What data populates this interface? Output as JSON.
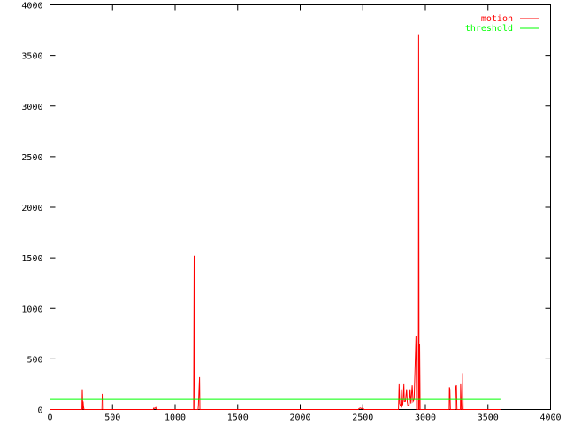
{
  "chart_data": {
    "type": "line",
    "title": "",
    "xlabel": "",
    "ylabel": "",
    "xlim": [
      0,
      4000
    ],
    "ylim": [
      0,
      4000
    ],
    "xticks": [
      0,
      500,
      1000,
      1500,
      2000,
      2500,
      3000,
      3500,
      4000
    ],
    "yticks": [
      0,
      500,
      1000,
      1500,
      2000,
      2500,
      3000,
      3500,
      4000
    ],
    "grid": false,
    "legend_position": "top-right",
    "series": [
      {
        "name": "motion",
        "color": "#ff0000",
        "points": [
          [
            0,
            0
          ],
          [
            255,
            0
          ],
          [
            258,
            200
          ],
          [
            262,
            0
          ],
          [
            264,
            80
          ],
          [
            267,
            30
          ],
          [
            272,
            0
          ],
          [
            415,
            0
          ],
          [
            418,
            150
          ],
          [
            424,
            150
          ],
          [
            426,
            0
          ],
          [
            825,
            0
          ],
          [
            830,
            15
          ],
          [
            838,
            10
          ],
          [
            845,
            20
          ],
          [
            852,
            0
          ],
          [
            1148,
            0
          ],
          [
            1152,
            1520
          ],
          [
            1156,
            0
          ],
          [
            1183,
            0
          ],
          [
            1186,
            40
          ],
          [
            1190,
            170
          ],
          [
            1195,
            320
          ],
          [
            1198,
            0
          ],
          [
            2465,
            0
          ],
          [
            2470,
            10
          ],
          [
            2480,
            15
          ],
          [
            2490,
            10
          ],
          [
            2500,
            15
          ],
          [
            2510,
            0
          ],
          [
            2785,
            0
          ],
          [
            2790,
            250
          ],
          [
            2795,
            60
          ],
          [
            2800,
            40
          ],
          [
            2805,
            30
          ],
          [
            2810,
            200
          ],
          [
            2815,
            40
          ],
          [
            2820,
            50
          ],
          [
            2828,
            250
          ],
          [
            2832,
            80
          ],
          [
            2840,
            80
          ],
          [
            2850,
            200
          ],
          [
            2855,
            80
          ],
          [
            2860,
            40
          ],
          [
            2870,
            40
          ],
          [
            2878,
            200
          ],
          [
            2885,
            60
          ],
          [
            2895,
            240
          ],
          [
            2902,
            80
          ],
          [
            2910,
            100
          ],
          [
            2925,
            730
          ],
          [
            2930,
            0
          ],
          [
            2944,
            0
          ],
          [
            2946,
            3710
          ],
          [
            2950,
            0
          ],
          [
            2954,
            650
          ],
          [
            2958,
            0
          ],
          [
            3190,
            0
          ],
          [
            3192,
            220
          ],
          [
            3196,
            200
          ],
          [
            3200,
            0
          ],
          [
            3240,
            0
          ],
          [
            3242,
            220
          ],
          [
            3248,
            240
          ],
          [
            3252,
            0
          ],
          [
            3275,
            0
          ],
          [
            3280,
            0
          ],
          [
            3282,
            250
          ],
          [
            3288,
            0
          ],
          [
            3296,
            0
          ],
          [
            3298,
            360
          ],
          [
            3302,
            0
          ],
          [
            3600,
            0
          ]
        ]
      },
      {
        "name": "threshold",
        "color": "#00ff00",
        "points": [
          [
            0,
            100
          ],
          [
            3600,
            100
          ]
        ]
      }
    ]
  }
}
